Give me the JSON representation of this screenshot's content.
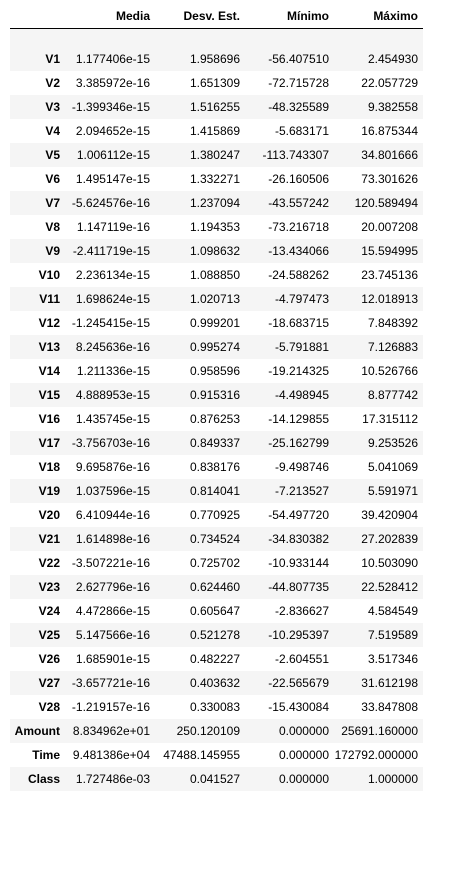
{
  "table": {
    "columns": [
      "",
      "Media",
      "Desv. Est.",
      "Mínimo",
      "Máximo"
    ],
    "rows": [
      [
        "V1",
        "1.177406e-15",
        "1.958696",
        "-56.407510",
        "2.454930"
      ],
      [
        "V2",
        "3.385972e-16",
        "1.651309",
        "-72.715728",
        "22.057729"
      ],
      [
        "V3",
        "-1.399346e-15",
        "1.516255",
        "-48.325589",
        "9.382558"
      ],
      [
        "V4",
        "2.094652e-15",
        "1.415869",
        "-5.683171",
        "16.875344"
      ],
      [
        "V5",
        "1.006112e-15",
        "1.380247",
        "-113.743307",
        "34.801666"
      ],
      [
        "V6",
        "1.495147e-15",
        "1.332271",
        "-26.160506",
        "73.301626"
      ],
      [
        "V7",
        "-5.624576e-16",
        "1.237094",
        "-43.557242",
        "120.589494"
      ],
      [
        "V8",
        "1.147119e-16",
        "1.194353",
        "-73.216718",
        "20.007208"
      ],
      [
        "V9",
        "-2.411719e-15",
        "1.098632",
        "-13.434066",
        "15.594995"
      ],
      [
        "V10",
        "2.236134e-15",
        "1.088850",
        "-24.588262",
        "23.745136"
      ],
      [
        "V11",
        "1.698624e-15",
        "1.020713",
        "-4.797473",
        "12.018913"
      ],
      [
        "V12",
        "-1.245415e-15",
        "0.999201",
        "-18.683715",
        "7.848392"
      ],
      [
        "V13",
        "8.245636e-16",
        "0.995274",
        "-5.791881",
        "7.126883"
      ],
      [
        "V14",
        "1.211336e-15",
        "0.958596",
        "-19.214325",
        "10.526766"
      ],
      [
        "V15",
        "4.888953e-15",
        "0.915316",
        "-4.498945",
        "8.877742"
      ],
      [
        "V16",
        "1.435745e-15",
        "0.876253",
        "-14.129855",
        "17.315112"
      ],
      [
        "V17",
        "-3.756703e-16",
        "0.849337",
        "-25.162799",
        "9.253526"
      ],
      [
        "V18",
        "9.695876e-16",
        "0.838176",
        "-9.498746",
        "5.041069"
      ],
      [
        "V19",
        "1.037596e-15",
        "0.814041",
        "-7.213527",
        "5.591971"
      ],
      [
        "V20",
        "6.410944e-16",
        "0.770925",
        "-54.497720",
        "39.420904"
      ],
      [
        "V21",
        "1.614898e-16",
        "0.734524",
        "-34.830382",
        "27.202839"
      ],
      [
        "V22",
        "-3.507221e-16",
        "0.725702",
        "-10.933144",
        "10.503090"
      ],
      [
        "V23",
        "2.627796e-16",
        "0.624460",
        "-44.807735",
        "22.528412"
      ],
      [
        "V24",
        "4.472866e-15",
        "0.605647",
        "-2.836627",
        "4.584549"
      ],
      [
        "V25",
        "5.147566e-16",
        "0.521278",
        "-10.295397",
        "7.519589"
      ],
      [
        "V26",
        "1.685901e-15",
        "0.482227",
        "-2.604551",
        "3.517346"
      ],
      [
        "V27",
        "-3.657721e-16",
        "0.403632",
        "-22.565679",
        "31.612198"
      ],
      [
        "V28",
        "-1.219157e-16",
        "0.330083",
        "-15.430084",
        "33.847808"
      ],
      [
        "Amount",
        "8.834962e+01",
        "250.120109",
        "0.000000",
        "25691.160000"
      ],
      [
        "Time",
        "9.481386e+04",
        "47488.145955",
        "0.000000",
        "172792.000000"
      ],
      [
        "Class",
        "1.727486e-03",
        "0.041527",
        "0.000000",
        "1.000000"
      ]
    ]
  }
}
